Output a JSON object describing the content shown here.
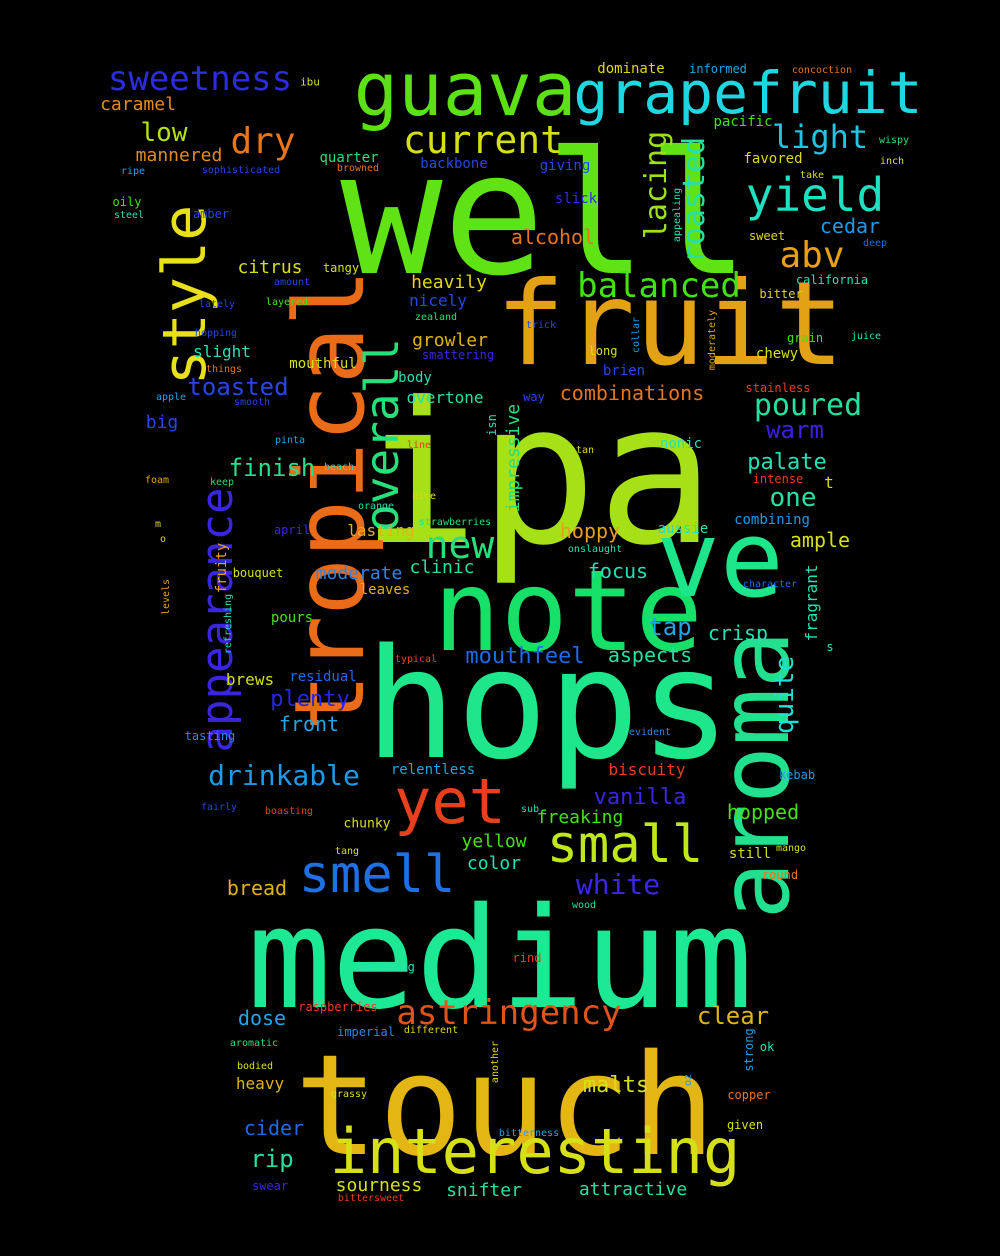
{
  "words": [
    {
      "text": "ipa",
      "color": "#a6e017"
    },
    {
      "text": "well",
      "color": "#5fe315"
    },
    {
      "text": "tropical",
      "color": "#ea6b18"
    },
    {
      "text": "hops",
      "color": "#1ee68b"
    },
    {
      "text": "medium",
      "color": "#1de995"
    },
    {
      "text": "touch",
      "color": "#e3b613"
    },
    {
      "text": "fruit",
      "color": "#e3a116"
    },
    {
      "text": "note",
      "color": "#16e068"
    },
    {
      "text": "ve",
      "color": "#1de58a"
    },
    {
      "text": "aroma",
      "color": "#22e08e"
    },
    {
      "text": "guava",
      "color": "#5ce016"
    },
    {
      "text": "grapefruit",
      "color": "#1ed7e0"
    },
    {
      "text": "style",
      "color": "#e8e01a"
    },
    {
      "text": "interesting",
      "color": "#d6e016"
    },
    {
      "text": "yet",
      "color": "#e6401c"
    },
    {
      "text": "smell",
      "color": "#1f6fe6"
    },
    {
      "text": "small",
      "color": "#bfe81a"
    },
    {
      "text": "appearance",
      "color": "#3b26e0"
    },
    {
      "text": "overall",
      "color": "#26e07a"
    },
    {
      "text": "yield",
      "color": "#1fe0c0"
    },
    {
      "text": "current",
      "color": "#d6e016"
    },
    {
      "text": "sweetness",
      "color": "#2b2be6"
    },
    {
      "text": "astringency",
      "color": "#e0541a"
    },
    {
      "text": "dry",
      "color": "#e6761c"
    },
    {
      "text": "balanced",
      "color": "#46e016"
    },
    {
      "text": "new",
      "color": "#26e07a"
    },
    {
      "text": "abv",
      "color": "#e8a016"
    },
    {
      "text": "light",
      "color": "#1ec6e0"
    },
    {
      "text": "lacing",
      "color": "#9ce016"
    },
    {
      "text": "roasted",
      "color": "#26e0a6"
    },
    {
      "text": "drinkable",
      "color": "#1e9ae6"
    },
    {
      "text": "white",
      "color": "#3b26e6"
    },
    {
      "text": "poured",
      "color": "#26e0a0"
    },
    {
      "text": "warm",
      "color": "#3b20e0"
    },
    {
      "text": "low",
      "color": "#b6e016"
    },
    {
      "text": "toasted",
      "color": "#2646e6"
    },
    {
      "text": "finish",
      "color": "#26e08e"
    },
    {
      "text": "one",
      "color": "#26e0a6"
    },
    {
      "text": "palate",
      "color": "#26e0b6"
    },
    {
      "text": "quite",
      "color": "#1ee0d6"
    },
    {
      "text": "mouthfeel",
      "color": "#1e6ae6"
    },
    {
      "text": "plenty",
      "color": "#2626e6"
    },
    {
      "text": "vanilla",
      "color": "#3b26e6"
    },
    {
      "text": "clear",
      "color": "#e0b416"
    },
    {
      "text": "malts",
      "color": "#d6e016"
    },
    {
      "text": "rip",
      "color": "#26e0a6"
    },
    {
      "text": "caramel",
      "color": "#e68a1c"
    },
    {
      "text": "mannered",
      "color": "#e68a1c"
    },
    {
      "text": "citrus",
      "color": "#d6e016"
    },
    {
      "text": "heavily",
      "color": "#e0d616"
    },
    {
      "text": "nicely",
      "color": "#2646e6"
    },
    {
      "text": "growler",
      "color": "#e0b416"
    },
    {
      "text": "alcohol",
      "color": "#e6761c"
    },
    {
      "text": "combinations",
      "color": "#e6761c"
    },
    {
      "text": "cedar",
      "color": "#1e9ae6"
    },
    {
      "text": "overtone",
      "color": "#26e0a6"
    },
    {
      "text": "impressive",
      "color": "#26e07a"
    },
    {
      "text": "hoppy",
      "color": "#e6a01c"
    },
    {
      "text": "focus",
      "color": "#26e0b6"
    },
    {
      "text": "tap",
      "color": "#1ea6e6"
    },
    {
      "text": "crisp",
      "color": "#26e0b6"
    },
    {
      "text": "aspects",
      "color": "#26e0a6"
    },
    {
      "text": "moderate",
      "color": "#2f86e6"
    },
    {
      "text": "clinic",
      "color": "#26e0a6"
    },
    {
      "text": "ample",
      "color": "#d6e016"
    },
    {
      "text": "fragrant",
      "color": "#26e0b6"
    },
    {
      "text": "hopped",
      "color": "#46e016"
    },
    {
      "text": "freaking",
      "color": "#46e016"
    },
    {
      "text": "yellow",
      "color": "#46e016"
    },
    {
      "text": "color",
      "color": "#26e0b6"
    },
    {
      "text": "bread",
      "color": "#e0b416"
    },
    {
      "text": "front",
      "color": "#1ea6e6"
    },
    {
      "text": "brews",
      "color": "#d6e016"
    },
    {
      "text": "dose",
      "color": "#1ea6e6"
    },
    {
      "text": "heavy",
      "color": "#e0b416"
    },
    {
      "text": "cider",
      "color": "#1e6ae6"
    },
    {
      "text": "sourness",
      "color": "#d6e016"
    },
    {
      "text": "snifter",
      "color": "#26e0a6"
    },
    {
      "text": "attractive",
      "color": "#26e0a6"
    },
    {
      "text": "big",
      "color": "#2646e6"
    },
    {
      "text": "slight",
      "color": "#26e0b6"
    },
    {
      "text": "quarter",
      "color": "#26e07a"
    },
    {
      "text": "backbone",
      "color": "#2646e6"
    },
    {
      "text": "giving",
      "color": "#2646e6"
    },
    {
      "text": "slick",
      "color": "#3b26e6"
    },
    {
      "text": "brien",
      "color": "#2646e6"
    },
    {
      "text": "body",
      "color": "#26e0b6"
    },
    {
      "text": "mouthful",
      "color": "#d6e016"
    },
    {
      "text": "lasting",
      "color": "#e0b416"
    },
    {
      "text": "leaves",
      "color": "#e0b416"
    },
    {
      "text": "pours",
      "color": "#46e016"
    },
    {
      "text": "bouquet",
      "color": "#d6e016"
    },
    {
      "text": "residual",
      "color": "#1e6ae6"
    },
    {
      "text": "fruity",
      "color": "#e6a01c"
    },
    {
      "text": "tasting",
      "color": "#2f86e6"
    },
    {
      "text": "relentless",
      "color": "#1ea6e6"
    },
    {
      "text": "biscuity",
      "color": "#e6401c"
    },
    {
      "text": "chunky",
      "color": "#d6e016"
    },
    {
      "text": "aussie",
      "color": "#26e0b6"
    },
    {
      "text": "combining",
      "color": "#1e9ae6"
    },
    {
      "text": "nonic",
      "color": "#26e0b6"
    },
    {
      "text": "t",
      "color": "#e0d616"
    },
    {
      "text": "favored",
      "color": "#e0d616"
    },
    {
      "text": "pacific",
      "color": "#46e016"
    },
    {
      "text": "tangy",
      "color": "#d6e016"
    },
    {
      "text": "chewy",
      "color": "#d6e016"
    },
    {
      "text": "grain",
      "color": "#46e016"
    },
    {
      "text": "california",
      "color": "#26e0b6"
    },
    {
      "text": "dominate",
      "color": "#e0d616"
    },
    {
      "text": "informed",
      "color": "#1ea6e6"
    },
    {
      "text": "concoction",
      "color": "#e6761c"
    },
    {
      "text": "ibu",
      "color": "#d6e016"
    },
    {
      "text": "wispy",
      "color": "#26e07a"
    },
    {
      "text": "inch",
      "color": "#d6e016"
    },
    {
      "text": "take",
      "color": "#d6e016"
    },
    {
      "text": "sweet",
      "color": "#e0d616"
    },
    {
      "text": "deep",
      "color": "#1e6ae6"
    },
    {
      "text": "bitter",
      "color": "#e0d616"
    },
    {
      "text": "juice",
      "color": "#26e0b6"
    },
    {
      "text": "ripe",
      "color": "#1ea6e6"
    },
    {
      "text": "sophisticated",
      "color": "#2646e6"
    },
    {
      "text": "browned",
      "color": "#e6761c"
    },
    {
      "text": "oily",
      "color": "#46e016"
    },
    {
      "text": "steel",
      "color": "#26e0b6"
    },
    {
      "text": "amber",
      "color": "#2646e6"
    },
    {
      "text": "amount",
      "color": "#2646e6"
    },
    {
      "text": "lately",
      "color": "#2646e6"
    },
    {
      "text": "layered",
      "color": "#46e016"
    },
    {
      "text": "zealand",
      "color": "#26e07a"
    },
    {
      "text": "trick",
      "color": "#2646e6"
    },
    {
      "text": "hopping",
      "color": "#2646e6"
    },
    {
      "text": "smattering",
      "color": "#3b26e6"
    },
    {
      "text": "things",
      "color": "#e6761c"
    },
    {
      "text": "apple",
      "color": "#1ea6e6"
    },
    {
      "text": "smooth",
      "color": "#2646e6"
    },
    {
      "text": "pinta",
      "color": "#1ea6e6"
    },
    {
      "text": "line",
      "color": "#e6401c"
    },
    {
      "text": "beach",
      "color": "#26e0b6"
    },
    {
      "text": "foam",
      "color": "#e6a01c"
    },
    {
      "text": "keep",
      "color": "#26e07a"
    },
    {
      "text": "nice",
      "color": "#e0d616"
    },
    {
      "text": "orange",
      "color": "#26e0a6"
    },
    {
      "text": "april",
      "color": "#3b26e6"
    },
    {
      "text": "strawberries",
      "color": "#26e07a"
    },
    {
      "text": "onslaught",
      "color": "#26e0b6"
    },
    {
      "text": "tan",
      "color": "#e0d616"
    },
    {
      "text": "intense",
      "color": "#e6401c"
    },
    {
      "text": "long",
      "color": "#d6e016"
    },
    {
      "text": "stainless",
      "color": "#e6401c"
    },
    {
      "text": "way",
      "color": "#2646e6"
    },
    {
      "text": "collar",
      "color": "#1e9ae6"
    },
    {
      "text": "moderately",
      "color": "#e6a01c"
    },
    {
      "text": "appealing",
      "color": "#26e0b6"
    },
    {
      "text": "isn",
      "color": "#26e0b6"
    },
    {
      "text": "character",
      "color": "#1e6ae6"
    },
    {
      "text": "s",
      "color": "#26e0b6"
    },
    {
      "text": "m",
      "color": "#e0d616"
    },
    {
      "text": "o",
      "color": "#e0d616"
    },
    {
      "text": "levels",
      "color": "#e6a01c"
    },
    {
      "text": "refreshing",
      "color": "#26e0b6"
    },
    {
      "text": "typical",
      "color": "#e6401c"
    },
    {
      "text": "evident",
      "color": "#2f86e6"
    },
    {
      "text": "kebab",
      "color": "#1e9ae6"
    },
    {
      "text": "fairly",
      "color": "#2646e6"
    },
    {
      "text": "boasting",
      "color": "#e6401c"
    },
    {
      "text": "sub",
      "color": "#26e0b6"
    },
    {
      "text": "tang",
      "color": "#d6e016"
    },
    {
      "text": "mango",
      "color": "#d6e016"
    },
    {
      "text": "still",
      "color": "#d6e016"
    },
    {
      "text": "round",
      "color": "#e6761c"
    },
    {
      "text": "wood",
      "color": "#26e0a6"
    },
    {
      "text": "becoming",
      "color": "#26e0b6"
    },
    {
      "text": "rind",
      "color": "#e6401c"
    },
    {
      "text": "raspberries",
      "color": "#e6401c"
    },
    {
      "text": "imperial",
      "color": "#2f86e6"
    },
    {
      "text": "different",
      "color": "#e0d616"
    },
    {
      "text": "aromatic",
      "color": "#26e07a"
    },
    {
      "text": "bodied",
      "color": "#d6e016"
    },
    {
      "text": "grassy",
      "color": "#d6e016"
    },
    {
      "text": "another",
      "color": "#e0d616"
    },
    {
      "text": "oz",
      "color": "#1e9ae6"
    },
    {
      "text": "strong",
      "color": "#1e9ae6"
    },
    {
      "text": "ok",
      "color": "#26e0b6"
    },
    {
      "text": "copper",
      "color": "#e6761c"
    },
    {
      "text": "given",
      "color": "#d6e016"
    },
    {
      "text": "bitterness",
      "color": "#1ea6e6"
    },
    {
      "text": "swear",
      "color": "#3b26e6"
    },
    {
      "text": "bittersweet",
      "color": "#e6401c"
    }
  ]
}
